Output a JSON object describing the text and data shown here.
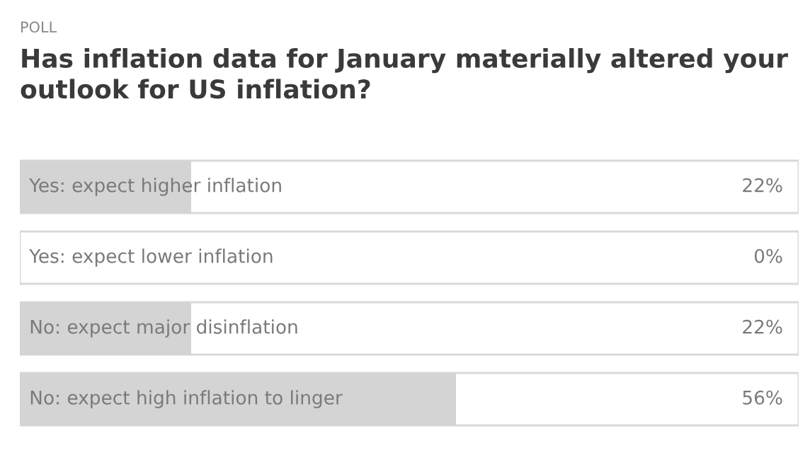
{
  "chart_data": {
    "type": "bar",
    "orientation": "horizontal",
    "subtitle": "POLL",
    "title": "Has inflation data for January materially altered your outlook for US inflation?",
    "categories": [
      "Yes: expect higher inflation",
      "Yes: expect lower inflation",
      "No: expect major disinflation",
      "No: expect high inflation to linger"
    ],
    "values": [
      22,
      0,
      22,
      56
    ],
    "value_labels": [
      "22%",
      "0%",
      "22%",
      "56%"
    ],
    "color": "#d4d4d4",
    "xlim": [
      0,
      100
    ]
  }
}
